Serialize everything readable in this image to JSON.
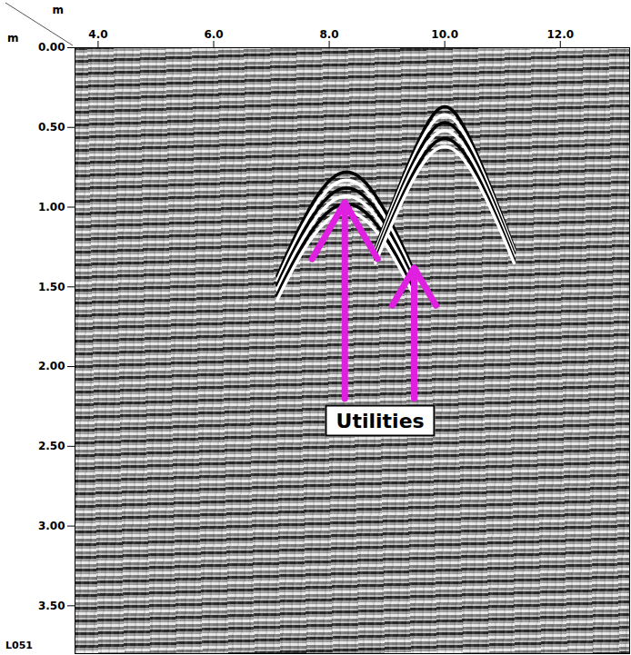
{
  "chart_data": {
    "type": "radargram",
    "x_label": "m",
    "y_label": "m",
    "line_label": "L051",
    "xlim": [
      3.6,
      13.2
    ],
    "ylim": [
      0,
      3.8
    ],
    "xticks": [
      {
        "value": 4,
        "label": "4.0"
      },
      {
        "value": 6,
        "label": "6.0"
      },
      {
        "value": 8,
        "label": "8.0"
      },
      {
        "value": 10,
        "label": "10.0"
      },
      {
        "value": 12,
        "label": "12.0"
      }
    ],
    "yticks": [
      {
        "value": 0,
        "label": "0.00"
      },
      {
        "value": 0.5,
        "label": "0.50"
      },
      {
        "value": 1,
        "label": "1.00"
      },
      {
        "value": 1.5,
        "label": "1.50"
      },
      {
        "value": 2,
        "label": "2.00"
      },
      {
        "value": 2.5,
        "label": "2.50"
      },
      {
        "value": 3,
        "label": "3.00"
      },
      {
        "value": 3.5,
        "label": "3.50"
      }
    ],
    "utilities": [
      {
        "x": 8.3,
        "depth": 0.78
      },
      {
        "x": 10.0,
        "depth": 0.37
      }
    ],
    "annotations": [
      {
        "text": "Utilities",
        "x": 8.89,
        "y": 2.34,
        "color": "#e020e0",
        "arrows": [
          {
            "from_x": 8.27,
            "from_y": 2.2,
            "to_x": 8.27,
            "to_y": 0.97
          },
          {
            "from_x": 9.47,
            "from_y": 2.2,
            "to_x": 9.47,
            "to_y": 1.38
          }
        ]
      }
    ],
    "grid": false
  }
}
